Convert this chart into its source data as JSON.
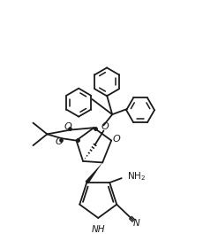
{
  "bg_color": "#ffffff",
  "line_color": "#1a1a1a",
  "line_width": 1.3,
  "fig_width": 2.47,
  "fig_height": 2.81,
  "dpi": 100,
  "xlim": [
    0,
    10
  ],
  "ylim": [
    0,
    11.4
  ]
}
